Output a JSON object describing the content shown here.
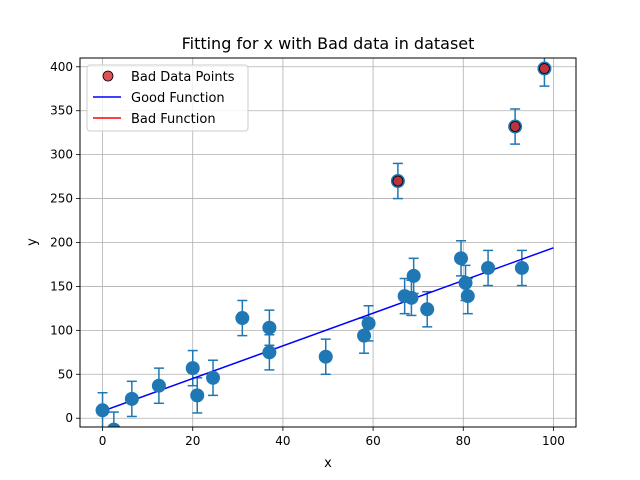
{
  "chart_data": {
    "type": "scatter",
    "title": "Fitting for x with Bad data in dataset",
    "xlabel": "x",
    "ylabel": "y",
    "xlim": [
      -5,
      105
    ],
    "ylim": [
      -10,
      410
    ],
    "xticks": [
      0,
      20,
      40,
      60,
      80,
      100
    ],
    "yticks": [
      0,
      50,
      100,
      150,
      200,
      250,
      300,
      350,
      400
    ],
    "grid": true,
    "legend_position": "top-left",
    "colors": {
      "data": "#1f77b4",
      "bad": "#d62728",
      "good_fn": "#0000ff",
      "bad_fn": "#ff0000"
    },
    "error": 20,
    "points": [
      {
        "x": 0,
        "y": 9
      },
      {
        "x": 2.5,
        "y": -13
      },
      {
        "x": 6.5,
        "y": 22
      },
      {
        "x": 12.5,
        "y": 37
      },
      {
        "x": 20,
        "y": 57
      },
      {
        "x": 21,
        "y": 26
      },
      {
        "x": 24.5,
        "y": 46
      },
      {
        "x": 31,
        "y": 114
      },
      {
        "x": 37,
        "y": 103
      },
      {
        "x": 37,
        "y": 75
      },
      {
        "x": 49.5,
        "y": 70
      },
      {
        "x": 58,
        "y": 94
      },
      {
        "x": 59,
        "y": 108
      },
      {
        "x": 65.5,
        "y": 270
      },
      {
        "x": 67,
        "y": 139
      },
      {
        "x": 68.5,
        "y": 137
      },
      {
        "x": 69,
        "y": 162
      },
      {
        "x": 72,
        "y": 124
      },
      {
        "x": 79.5,
        "y": 182
      },
      {
        "x": 80.5,
        "y": 154
      },
      {
        "x": 81,
        "y": 139
      },
      {
        "x": 85.5,
        "y": 171
      },
      {
        "x": 91.5,
        "y": 332
      },
      {
        "x": 93,
        "y": 171
      },
      {
        "x": 98,
        "y": 398
      }
    ],
    "bad_points": [
      {
        "x": 65.5,
        "y": 270
      },
      {
        "x": 91.5,
        "y": 332
      },
      {
        "x": 98,
        "y": 398
      }
    ],
    "good_function": {
      "x": [
        0,
        100
      ],
      "y": [
        8,
        194
      ]
    },
    "legend": [
      "Bad Data Points",
      "Good Function",
      "Bad Function"
    ]
  }
}
